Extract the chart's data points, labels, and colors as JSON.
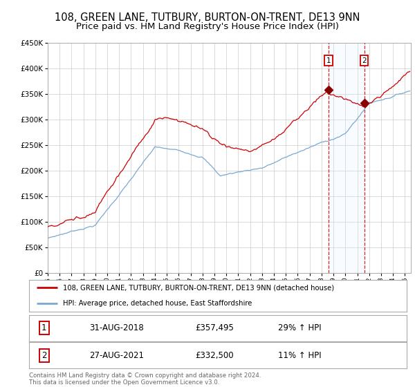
{
  "title": "108, GREEN LANE, TUTBURY, BURTON-ON-TRENT, DE13 9NN",
  "subtitle": "Price paid vs. HM Land Registry's House Price Index (HPI)",
  "title_fontsize": 10.5,
  "subtitle_fontsize": 9.5,
  "red_line_label": "108, GREEN LANE, TUTBURY, BURTON-ON-TRENT, DE13 9NN (detached house)",
  "blue_line_label": "HPI: Average price, detached house, East Staffordshire",
  "sale1_date": "31-AUG-2018",
  "sale1_price": 357495,
  "sale1_pct": "29%",
  "sale2_date": "27-AUG-2021",
  "sale2_price": 332500,
  "sale2_pct": "11%",
  "footnote": "Contains HM Land Registry data © Crown copyright and database right 2024.\nThis data is licensed under the Open Government Licence v3.0.",
  "ylim": [
    0,
    450000
  ],
  "ytick_step": 50000,
  "start_year": 1995,
  "end_year": 2025,
  "red_color": "#cc0000",
  "blue_color": "#7aa8d2",
  "marker_color": "#880000",
  "vline_color": "#cc0000",
  "shade_color": "#ddeeff",
  "background_color": "#ffffff",
  "grid_color": "#cccccc",
  "sale1_year": 2018,
  "sale1_month": 8,
  "sale2_year": 2021,
  "sale2_month": 8
}
